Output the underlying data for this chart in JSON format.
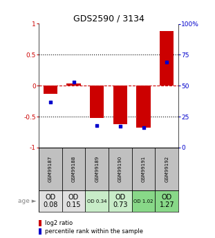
{
  "title": "GDS2590 / 3134",
  "samples": [
    "GSM99187",
    "GSM99188",
    "GSM99189",
    "GSM99190",
    "GSM99191",
    "GSM99192"
  ],
  "log2_ratio": [
    -0.13,
    0.04,
    -0.52,
    -0.62,
    -0.68,
    0.88
  ],
  "percentile_rank": [
    37,
    53,
    18,
    17,
    16,
    69
  ],
  "bar_color": "#cc0000",
  "dot_color": "#0000cc",
  "ylim_left": [
    -1,
    1
  ],
  "yticks_left": [
    -1,
    -0.5,
    0,
    0.5,
    1
  ],
  "ytick_labels_left": [
    "-1",
    "-0.5",
    "0",
    "0.5",
    "1"
  ],
  "ylim_right": [
    0,
    100
  ],
  "yticks_right": [
    0,
    25,
    50,
    75,
    100
  ],
  "ytick_labels_right": [
    "0",
    "25",
    "50",
    "75",
    "100%"
  ],
  "dotline_y": [
    0.5,
    -0.5
  ],
  "age_labels": [
    "OD\n0.08",
    "OD\n0.15",
    "OD 0.34",
    "OD\n0.73",
    "OD 1.02",
    "OD\n1.27"
  ],
  "age_fontsize_large": [
    true,
    true,
    false,
    true,
    false,
    true
  ],
  "cell_colors": [
    "#e0e0e0",
    "#e0e0e0",
    "#c8ecc8",
    "#c8ecc8",
    "#88d888",
    "#88d888"
  ],
  "gsm_bg_color": "#c0c0c0",
  "legend_items": [
    "log2 ratio",
    "percentile rank within the sample"
  ],
  "background_color": "#ffffff"
}
